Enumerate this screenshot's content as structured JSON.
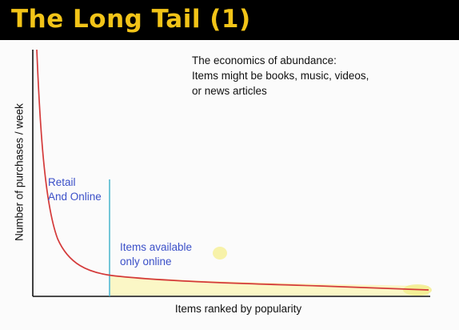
{
  "slide": {
    "title": "The Long Tail (1)"
  },
  "note": {
    "lines": [
      "The economics of abundance:",
      "Items might be books, music, videos,",
      "or news articles"
    ]
  },
  "axes": {
    "y_label": "Number of purchases / week",
    "x_label": "Items ranked by popularity"
  },
  "regions": {
    "head_label": [
      "Retail",
      "And Online"
    ],
    "tail_label": [
      "Items available",
      "only online"
    ]
  },
  "colors": {
    "title_bar": "#000000",
    "title_text": "#f2c418",
    "curve": "#d43a3a",
    "divider": "#3ab0c8",
    "tail_fill": "#fbf7c4",
    "label_blue": "#3b50c8"
  }
}
